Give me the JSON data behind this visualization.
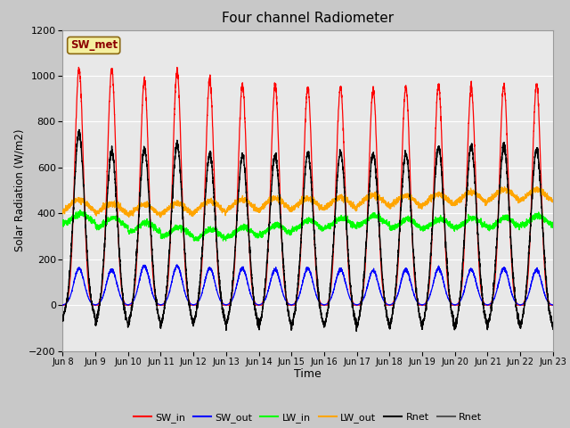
{
  "title": "Four channel Radiometer",
  "xlabel": "Time",
  "ylabel": "Solar Radiation (W/m2)",
  "ylim": [
    -200,
    1200
  ],
  "ytick_values": [
    -200,
    0,
    200,
    400,
    600,
    800,
    1000,
    1200
  ],
  "xtick_labels": [
    "Jun 8",
    "Jun 9",
    "Jun 10",
    "Jun 11",
    "Jun 12",
    "Jun 13",
    "Jun 14",
    "Jun 15",
    "Jun 16",
    "Jun 17",
    "Jun 18",
    "Jun 19",
    "Jun 20",
    "Jun 21",
    "Jun 22",
    "Jun 23"
  ],
  "fig_bg": "#c8c8c8",
  "plot_bg": "#e8e8e8",
  "grid_color": "#ffffff",
  "SW_met_label": "SW_met",
  "SW_met_fg": "#8B0000",
  "SW_met_bg": "#f5f0a0",
  "SW_met_border": "#8B6914",
  "n_days": 15,
  "pts_per_day": 288,
  "SW_in_peak": [
    1030,
    1030,
    980,
    1020,
    980,
    960,
    960,
    950,
    950,
    940,
    950,
    960,
    950,
    960,
    960
  ],
  "SW_out_peak": [
    160,
    155,
    170,
    170,
    160,
    160,
    155,
    160,
    155,
    150,
    155,
    160,
    155,
    160,
    155
  ],
  "Rnet_peak": [
    750,
    670,
    680,
    700,
    660,
    650,
    650,
    660,
    665,
    660,
    660,
    690,
    690,
    695,
    680
  ],
  "Rnet_trough": [
    -60,
    -90,
    -90,
    -90,
    -85,
    -90,
    -100,
    -100,
    -100,
    -100,
    -100,
    -100,
    -100,
    -100,
    -100
  ],
  "LW_in_base": [
    380,
    360,
    340,
    320,
    310,
    320,
    330,
    350,
    360,
    370,
    355,
    355,
    360,
    360,
    370
  ],
  "LW_out_base": [
    390,
    380,
    375,
    378,
    388,
    395,
    400,
    400,
    405,
    415,
    412,
    418,
    428,
    438,
    438
  ],
  "LW_out_amp": [
    70,
    65,
    65,
    65,
    65,
    65,
    65,
    65,
    65,
    65,
    65,
    65,
    65,
    65,
    65
  ],
  "legend_colors": [
    "red",
    "blue",
    "lime",
    "orange",
    "black",
    "#555555"
  ],
  "legend_labels": [
    "SW_in",
    "SW_out",
    "LW_in",
    "LW_out",
    "Rnet",
    "Rnet"
  ]
}
